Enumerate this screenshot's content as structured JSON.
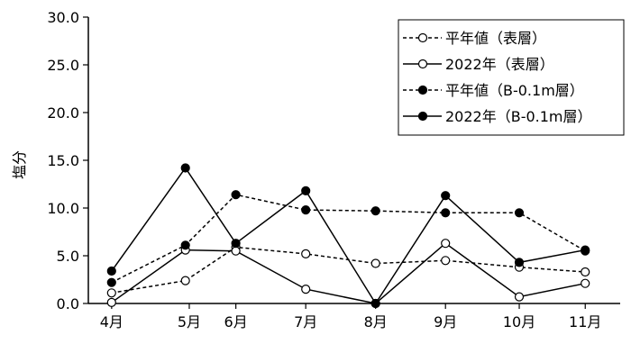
{
  "chart_data": {
    "type": "line",
    "ylabel": "塩分",
    "xlabel": "",
    "title": "",
    "ylim": [
      0,
      30
    ],
    "y_ticks": [
      "0.0",
      "5.0",
      "10.0",
      "15.0",
      "20.0",
      "25.0",
      "30.0"
    ],
    "y_tick_values": [
      0,
      5,
      10,
      15,
      20,
      25,
      30
    ],
    "categories": [
      "4月",
      "5月",
      "6月",
      "7月",
      "8月",
      "9月",
      "10月",
      "11月"
    ],
    "x_month_positions": [
      4.0,
      5.0,
      5.6,
      6.5,
      7.4,
      8.3,
      9.25,
      10.1
    ],
    "x_range": [
      3.7,
      10.55
    ],
    "grid": false,
    "legend_position": "top-right",
    "series": [
      {
        "name": "平年値（表層）",
        "line_style": "dashed",
        "marker": "open-circle",
        "x": [
          4.0,
          4.95,
          5.6,
          6.5,
          7.4,
          8.3,
          9.25,
          10.1
        ],
        "values": [
          1.1,
          2.4,
          5.9,
          5.2,
          4.2,
          4.5,
          3.8,
          3.3
        ]
      },
      {
        "name": "2022年（表層）",
        "line_style": "solid",
        "marker": "open-circle",
        "x": [
          4.0,
          4.95,
          5.6,
          6.5,
          7.4,
          8.3,
          9.25,
          10.1
        ],
        "values": [
          0.1,
          5.6,
          5.5,
          1.5,
          0.0,
          6.3,
          0.7,
          2.1
        ]
      },
      {
        "name": "平年値（B-0.1m層）",
        "line_style": "dashed",
        "marker": "filled-circle",
        "x": [
          4.0,
          4.95,
          5.6,
          6.5,
          7.4,
          8.3,
          9.25,
          10.1
        ],
        "values": [
          2.2,
          6.1,
          11.4,
          9.8,
          9.7,
          9.5,
          9.5,
          5.5
        ]
      },
      {
        "name": "2022年（B-0.1m層）",
        "line_style": "solid",
        "marker": "filled-circle",
        "x": [
          4.0,
          4.95,
          5.6,
          6.5,
          7.4,
          8.3,
          9.25,
          10.1
        ],
        "values": [
          3.4,
          14.2,
          6.3,
          11.8,
          0.0,
          11.3,
          4.3,
          5.6
        ]
      }
    ],
    "colors": {
      "line": "#000000",
      "background": "#ffffff"
    }
  }
}
